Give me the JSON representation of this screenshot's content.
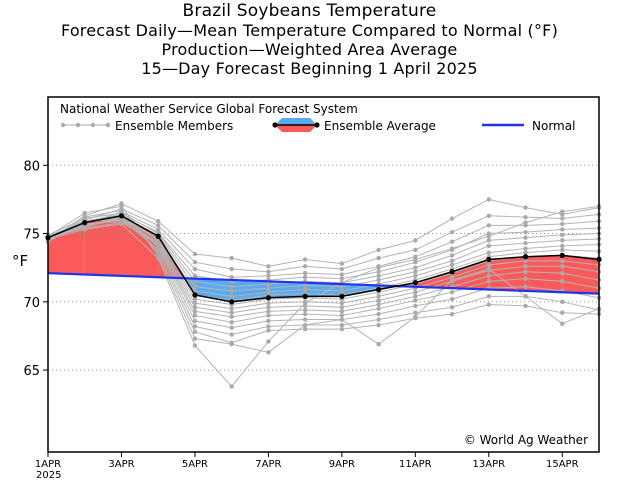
{
  "chart_data": {
    "type": "line",
    "title": "Brazil Soybeans Temperature",
    "subtitle_lines": [
      "Forecast Daily—Mean Temperature Compared to Normal (°F)",
      "Production—Weighted Area Average",
      "15—Day Forecast Beginning 1 April 2025"
    ],
    "ylabel": "°F",
    "xlabel": "",
    "ylim": [
      59,
      85
    ],
    "yticks": [
      65,
      70,
      75,
      80
    ],
    "grid": "horizontal dotted",
    "legend_title": "National Weather Service Global Forecast System",
    "legend_items": {
      "members": "Ensemble Members",
      "average": "Ensemble Average",
      "normal": "Normal"
    },
    "copyright": "© World Ag Weather",
    "x": [
      1,
      2,
      3,
      4,
      5,
      6,
      7,
      8,
      9,
      10,
      11,
      12,
      13,
      14,
      15,
      16
    ],
    "x_ticks": [
      {
        "x": 1,
        "label": "1APR",
        "sub": "2025"
      },
      {
        "x": 3,
        "label": "3APR"
      },
      {
        "x": 5,
        "label": "5APR"
      },
      {
        "x": 7,
        "label": "7APR"
      },
      {
        "x": 9,
        "label": "9APR"
      },
      {
        "x": 11,
        "label": "11APR"
      },
      {
        "x": 13,
        "label": "13APR"
      },
      {
        "x": 15,
        "label": "15APR"
      }
    ],
    "series": [
      {
        "name": "Ensemble Average",
        "values": [
          74.7,
          75.8,
          76.3,
          74.8,
          70.5,
          70.0,
          70.3,
          70.4,
          70.4,
          70.9,
          71.4,
          72.2,
          73.1,
          73.3,
          73.4,
          73.1
        ]
      },
      {
        "name": "Normal",
        "values": [
          72.1,
          72.0,
          71.9,
          71.8,
          71.7,
          71.6,
          71.5,
          71.4,
          71.3,
          71.2,
          71.1,
          71.0,
          70.9,
          70.8,
          70.7,
          70.6
        ]
      }
    ],
    "members": [
      [
        74.5,
        76.3,
        77.2,
        75.9,
        73.5,
        73.2,
        72.6,
        73.1,
        72.8,
        73.8,
        74.5,
        76.1,
        77.5,
        76.9,
        76.4,
        76.9
      ],
      [
        74.6,
        76.0,
        76.8,
        75.6,
        72.9,
        72.4,
        72.2,
        72.6,
        72.4,
        73.2,
        73.8,
        75.1,
        76.3,
        76.2,
        76.1,
        76.4
      ],
      [
        74.8,
        75.7,
        76.6,
        75.3,
        72.4,
        71.8,
        71.9,
        72.1,
        72.0,
        72.6,
        73.3,
        74.4,
        75.6,
        75.6,
        75.7,
        75.9
      ],
      [
        74.4,
        75.9,
        76.4,
        75.1,
        71.9,
        71.5,
        71.6,
        71.8,
        71.7,
        72.2,
        72.9,
        73.8,
        75.0,
        75.1,
        75.3,
        75.4
      ],
      [
        74.9,
        76.1,
        76.5,
        75.0,
        71.5,
        71.1,
        71.3,
        71.5,
        71.4,
        71.9,
        72.5,
        73.4,
        74.5,
        74.7,
        74.9,
        75.0
      ],
      [
        74.6,
        75.5,
        76.2,
        74.9,
        71.1,
        70.8,
        71.0,
        71.2,
        71.1,
        71.6,
        72.2,
        73.0,
        74.1,
        74.3,
        74.5,
        74.6
      ],
      [
        74.7,
        75.8,
        76.1,
        74.7,
        70.8,
        70.4,
        70.7,
        70.9,
        70.8,
        71.3,
        71.9,
        72.7,
        73.6,
        73.9,
        74.1,
        74.2
      ],
      [
        74.5,
        75.6,
        76.0,
        74.6,
        70.5,
        70.1,
        70.5,
        70.6,
        70.5,
        71.0,
        71.6,
        72.4,
        73.3,
        73.6,
        73.8,
        73.7
      ],
      [
        74.8,
        75.9,
        76.3,
        74.5,
        70.2,
        69.8,
        70.2,
        70.3,
        70.2,
        70.7,
        71.3,
        72.1,
        73.0,
        73.3,
        73.4,
        73.2
      ],
      [
        74.6,
        75.7,
        75.9,
        74.4,
        69.9,
        69.5,
        69.9,
        70.0,
        69.9,
        70.4,
        71.0,
        71.8,
        72.7,
        73.0,
        73.0,
        72.7
      ],
      [
        74.7,
        75.4,
        75.8,
        74.3,
        69.6,
        69.2,
        69.6,
        69.7,
        69.6,
        70.1,
        70.7,
        71.5,
        72.3,
        72.6,
        72.6,
        72.2
      ],
      [
        74.5,
        75.8,
        76.2,
        74.2,
        69.3,
        68.9,
        69.3,
        69.4,
        69.3,
        69.8,
        70.4,
        71.1,
        71.9,
        72.2,
        72.1,
        71.6
      ],
      [
        74.9,
        75.6,
        76.0,
        74.1,
        69.0,
        68.5,
        69.0,
        69.1,
        69.0,
        69.5,
        70.1,
        70.7,
        71.5,
        71.7,
        71.5,
        71.0
      ],
      [
        74.6,
        75.9,
        76.4,
        74.0,
        68.6,
        68.1,
        68.6,
        68.7,
        68.7,
        69.1,
        69.7,
        70.2,
        71.0,
        71.1,
        70.8,
        70.3
      ],
      [
        74.7,
        75.5,
        76.1,
        73.8,
        68.2,
        67.6,
        68.2,
        68.3,
        68.3,
        68.7,
        69.2,
        69.6,
        70.4,
        70.4,
        70.0,
        69.4
      ],
      [
        74.4,
        76.2,
        76.7,
        73.6,
        67.8,
        67.0,
        67.9,
        68.0,
        68.0,
        68.3,
        68.8,
        69.1,
        69.8,
        69.7,
        69.2,
        69.1
      ],
      [
        74.8,
        76.5,
        77.0,
        73.4,
        67.3,
        66.9,
        66.3,
        68.3,
        68.7,
        66.9,
        68.9,
        71.6,
        72.4,
        70.4,
        68.4,
        69.5
      ],
      [
        74.6,
        75.3,
        75.7,
        73.2,
        66.8,
        63.8,
        67.1,
        69.9,
        71.4,
        72.5,
        73.1,
        73.9,
        74.8,
        75.8,
        76.6,
        77.0
      ]
    ]
  }
}
